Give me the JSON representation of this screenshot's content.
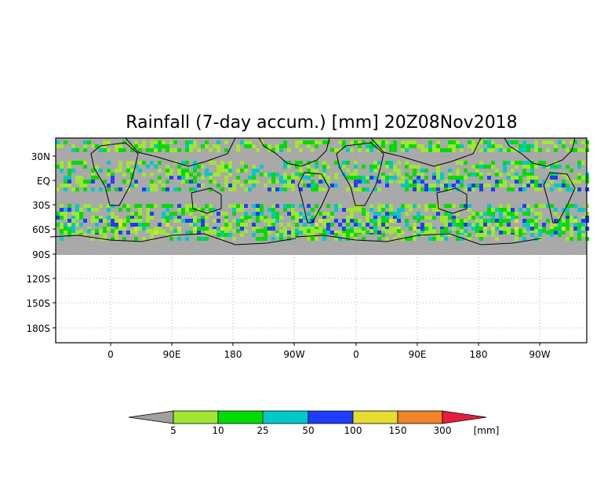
{
  "title": "Rainfall (7-day accum.) [mm] 20Z08Nov2018",
  "y_ticks": [
    "30N",
    "EQ",
    "30S",
    "60S",
    "90S",
    "120S",
    "150S",
    "180S"
  ],
  "x_ticks": [
    "0",
    "90E",
    "180",
    "90W",
    "0",
    "90E",
    "180",
    "90W"
  ],
  "colorbar": {
    "levels": [
      "5",
      "10",
      "25",
      "50",
      "100",
      "150",
      "300"
    ],
    "unit": "[mm]",
    "colors": [
      "#a0a0a0",
      "#a0e632",
      "#00dc00",
      "#00c8c8",
      "#1e3cff",
      "#e6dc32",
      "#f08228",
      "#e61e3c"
    ]
  },
  "map": {
    "ocean_dry_color": "#a9a9a9",
    "no_data_color": "#ffffff",
    "grid": "dotted"
  }
}
